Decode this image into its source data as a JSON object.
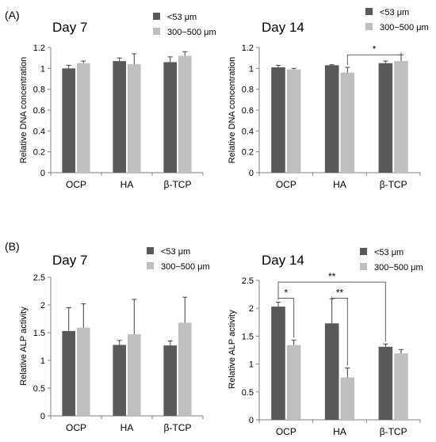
{
  "panel_labels": [
    "(A)",
    "(B)"
  ],
  "colors": {
    "dark": "#595959",
    "light": "#bfbfbf",
    "axis": "#808080"
  },
  "chart_data": [
    {
      "type": "bar",
      "panel": "(A)",
      "title": "Day 7",
      "ylabel": "Relative DNA concentration",
      "categories": [
        "OCP",
        "HA",
        "β-TCP"
      ],
      "ylim": [
        0,
        1.2
      ],
      "yticks": [
        0,
        0.2,
        0.4,
        0.6,
        0.8,
        1,
        1.2
      ],
      "legend_position": "top-right",
      "series": [
        {
          "name": "<53 μm",
          "values": [
            1.0,
            1.07,
            1.06
          ],
          "errors": [
            0.03,
            0.03,
            0.05
          ]
        },
        {
          "name": "300−500 μm",
          "values": [
            1.05,
            1.04,
            1.12
          ],
          "errors": [
            0.02,
            0.1,
            0.04
          ]
        }
      ],
      "significance": []
    },
    {
      "type": "bar",
      "panel": "(A)",
      "title": "Day 14",
      "ylabel": "Relative DNA concentration",
      "categories": [
        "OCP",
        "HA",
        "β-TCP"
      ],
      "ylim": [
        0,
        1.2
      ],
      "yticks": [
        0,
        0.2,
        0.4,
        0.6,
        0.8,
        1,
        1.2
      ],
      "legend_position": "top-right",
      "series": [
        {
          "name": "<53 μm",
          "values": [
            1.01,
            1.03,
            1.05
          ],
          "errors": [
            0.02,
            0.005,
            0.02
          ]
        },
        {
          "name": "300−500 μm",
          "values": [
            0.99,
            0.96,
            1.07
          ],
          "errors": [
            0.01,
            0.05,
            0.06
          ]
        }
      ],
      "significance": [
        {
          "label": "*",
          "from": [
            1,
            1
          ],
          "to": [
            2,
            1
          ],
          "level": 1.13
        }
      ]
    },
    {
      "type": "bar",
      "panel": "(B)",
      "title": "Day 7",
      "ylabel": "Relative ALP activity",
      "categories": [
        "OCP",
        "HA",
        "β-TCP"
      ],
      "ylim": [
        0,
        2.5
      ],
      "yticks": [
        0,
        0.5,
        1,
        1.5,
        2,
        2.5
      ],
      "legend_position": "top-right",
      "series": [
        {
          "name": "<53 μm",
          "values": [
            1.53,
            1.28,
            1.27
          ],
          "errors": [
            0.42,
            0.08,
            0.08
          ]
        },
        {
          "name": "300−500 μm",
          "values": [
            1.59,
            1.47,
            1.68
          ],
          "errors": [
            0.43,
            0.63,
            0.46
          ]
        }
      ],
      "significance": []
    },
    {
      "type": "bar",
      "panel": "(B)",
      "title": "Day 14",
      "ylabel": "Relative ALP activity",
      "categories": [
        "OCP",
        "HA",
        "β-TCP"
      ],
      "ylim": [
        0,
        2.5
      ],
      "yticks": [
        0,
        0.5,
        1,
        1.5,
        2,
        2.5
      ],
      "legend_position": "top-right",
      "series": [
        {
          "name": "<53 μm",
          "values": [
            2.03,
            1.73,
            1.31
          ],
          "errors": [
            0.08,
            0.44,
            0.05
          ]
        },
        {
          "name": "300−500 μm",
          "values": [
            1.34,
            0.76,
            1.19
          ],
          "errors": [
            0.09,
            0.17,
            0.07
          ]
        }
      ],
      "significance": [
        {
          "label": "*",
          "from": [
            0,
            0
          ],
          "to": [
            0,
            1
          ],
          "level": 2.18
        },
        {
          "label": "**",
          "from": [
            0,
            0
          ],
          "to": [
            2,
            0
          ],
          "level": 2.47
        },
        {
          "label": "**",
          "from": [
            1,
            0
          ],
          "to": [
            1,
            1
          ],
          "level": 2.18
        }
      ]
    }
  ]
}
